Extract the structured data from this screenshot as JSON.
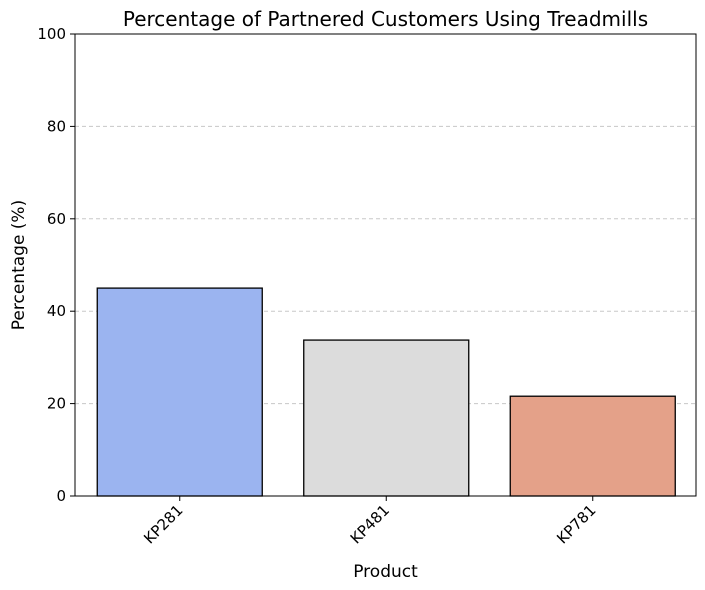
{
  "chart_data": {
    "type": "bar",
    "title": "Percentage of Partnered Customers Using Treadmills",
    "xlabel": "Product",
    "ylabel": "Percentage (%)",
    "categories": [
      "KP281",
      "KP481",
      "KP781"
    ],
    "values": [
      45.0,
      33.75,
      21.6
    ],
    "colors": [
      "#9bb4f0",
      "#dcdcdc",
      "#e4a189"
    ],
    "ylim": [
      0,
      100
    ],
    "yticks": [
      0,
      20,
      40,
      60,
      80,
      100
    ],
    "grid": "y-dashed",
    "legend": "none"
  }
}
